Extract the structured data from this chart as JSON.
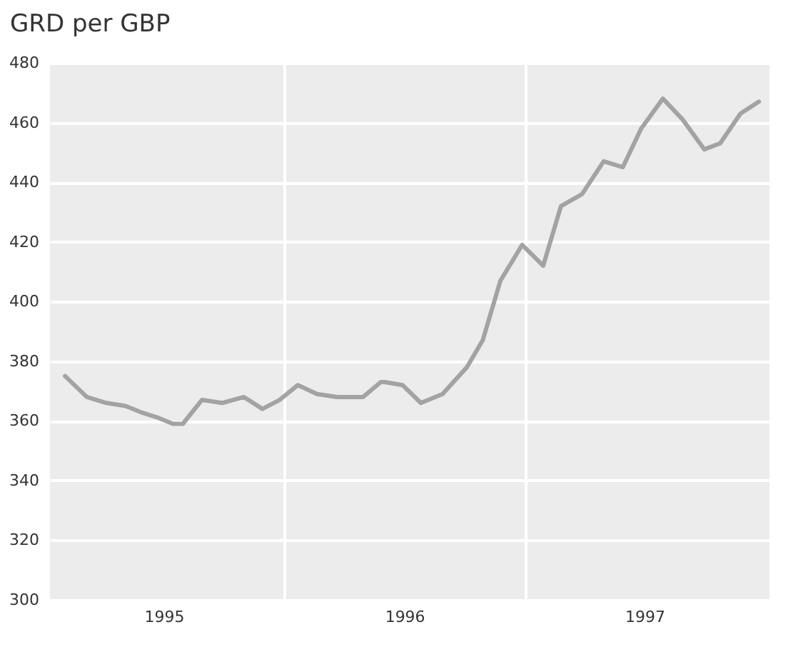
{
  "chart_data": {
    "type": "line",
    "title": "GRD per GBP",
    "x": [
      "1995-02-02",
      "1995-03-07",
      "1995-04-06",
      "1995-05-05",
      "1995-05-27",
      "1995-06-24",
      "1995-07-16",
      "1995-07-31",
      "1995-08-29",
      "1995-09-29",
      "1995-11-01",
      "1995-11-29",
      "1995-12-25",
      "1996-01-22",
      "1996-02-20",
      "1996-03-22",
      "1996-04-30",
      "1996-05-27",
      "1996-06-02",
      "1996-06-29",
      "1996-07-27",
      "1996-08-29",
      "1996-10-05",
      "1996-10-29",
      "1996-11-25",
      "1996-12-28",
      "1997-01-29",
      "1997-02-25",
      "1997-03-29",
      "1997-05-01",
      "1997-05-30",
      "1997-06-27",
      "1997-07-30",
      "1997-08-29",
      "1997-10-01",
      "1997-10-25",
      "1997-11-25",
      "1997-12-23"
    ],
    "series": [
      {
        "color": "#a3a3a3",
        "values": [
          375,
          368,
          366,
          365,
          363,
          361,
          359,
          359,
          367,
          366,
          368,
          364,
          367,
          372,
          369,
          368,
          368,
          373,
          373,
          372,
          366,
          369,
          378,
          387,
          407,
          419,
          412,
          432,
          436,
          447,
          445,
          458,
          468,
          461,
          451,
          453,
          463,
          467
        ]
      }
    ],
    "xlim": [
      "1995-01-10",
      "1998-01-08"
    ],
    "xticks": [
      {
        "value": "1995-07-02",
        "label": "1995"
      },
      {
        "value": "1996-01-01",
        "label": null
      },
      {
        "value": "1996-07-02",
        "label": "1996"
      },
      {
        "value": "1997-01-01",
        "label": null
      },
      {
        "value": "1997-07-02",
        "label": "1997"
      }
    ],
    "ylim": [
      300,
      480
    ],
    "yticks": [
      300,
      320,
      340,
      360,
      380,
      400,
      420,
      440,
      460,
      480
    ],
    "grid": true,
    "marker": "none",
    "line_style": "solid"
  }
}
